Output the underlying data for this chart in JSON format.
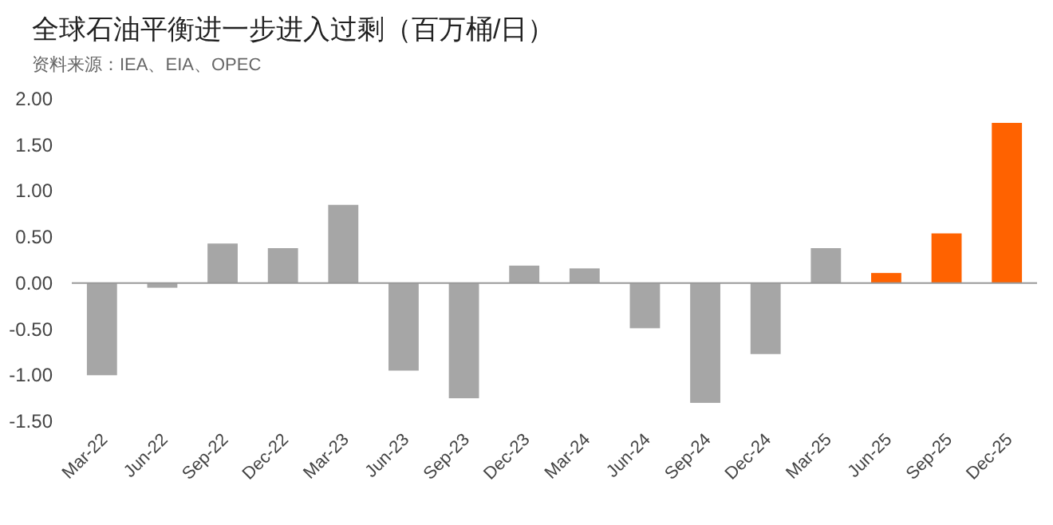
{
  "chart_data": {
    "type": "bar",
    "title": "全球石油平衡进一步进入过剩（百万桶/日）",
    "annotations": [
      "资料来源：IEA、EIA、OPEC"
    ],
    "categories": [
      "Mar-22",
      "Jun-22",
      "Sep-22",
      "Dec-22",
      "Mar-23",
      "Jun-23",
      "Sep-23",
      "Dec-23",
      "Mar-24",
      "Jun-24",
      "Sep-24",
      "Dec-24",
      "Mar-25",
      "Jun-25",
      "Sep-25",
      "Dec-25"
    ],
    "values": [
      -1.0,
      -0.05,
      0.43,
      0.38,
      0.85,
      -0.95,
      -1.25,
      0.19,
      0.16,
      -0.49,
      -1.3,
      -0.77,
      0.38,
      0.11,
      0.54,
      1.74
    ],
    "colors": [
      "#a6a6a6",
      "#a6a6a6",
      "#a6a6a6",
      "#a6a6a6",
      "#a6a6a6",
      "#a6a6a6",
      "#a6a6a6",
      "#a6a6a6",
      "#a6a6a6",
      "#a6a6a6",
      "#a6a6a6",
      "#a6a6a6",
      "#a6a6a6",
      "#ff6200",
      "#ff6200",
      "#ff6200"
    ],
    "ylim": [
      -1.5,
      2.0
    ],
    "yticks": [
      {
        "value": -1.5,
        "label": "-1.50"
      },
      {
        "value": -1.0,
        "label": "-1.00"
      },
      {
        "value": -0.5,
        "label": "-0.50"
      },
      {
        "value": 0,
        "label": "0.00"
      },
      {
        "value": 0.5,
        "label": "0.50"
      },
      {
        "value": 1.0,
        "label": "1.00"
      },
      {
        "value": 1.5,
        "label": "1.50"
      },
      {
        "value": 2.0,
        "label": "2.00"
      }
    ]
  }
}
